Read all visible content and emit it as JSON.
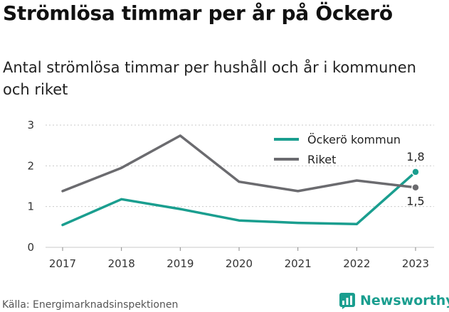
{
  "title": "Strömlösa timmar per år på Öckerö",
  "subtitle": "Antal strömlösa timmar per hushåll och år i kommunen och riket",
  "source": "Källa: Energimarknadsinspektionen",
  "brand": {
    "name": "Newsworthy",
    "icon": "newsworthy-logo-icon",
    "color": "#1a9e8f"
  },
  "chart_data": {
    "type": "line",
    "x": [
      "2017",
      "2018",
      "2019",
      "2020",
      "2021",
      "2022",
      "2023"
    ],
    "ylim": [
      0,
      3
    ],
    "yticks": [
      "0",
      "1",
      "2",
      "3"
    ],
    "grid": "horizontal dashed",
    "legend_position": "top-right",
    "series": [
      {
        "name": "Öckerö kommun",
        "color": "#1a9e8f",
        "values": [
          0.55,
          1.18,
          0.94,
          0.66,
          0.6,
          0.57,
          1.85
        ],
        "end_label": "1,8"
      },
      {
        "name": "Riket",
        "color": "#6b6b6f",
        "values": [
          1.38,
          1.95,
          2.74,
          1.61,
          1.38,
          1.64,
          1.47
        ],
        "end_label": "1,5"
      }
    ]
  }
}
